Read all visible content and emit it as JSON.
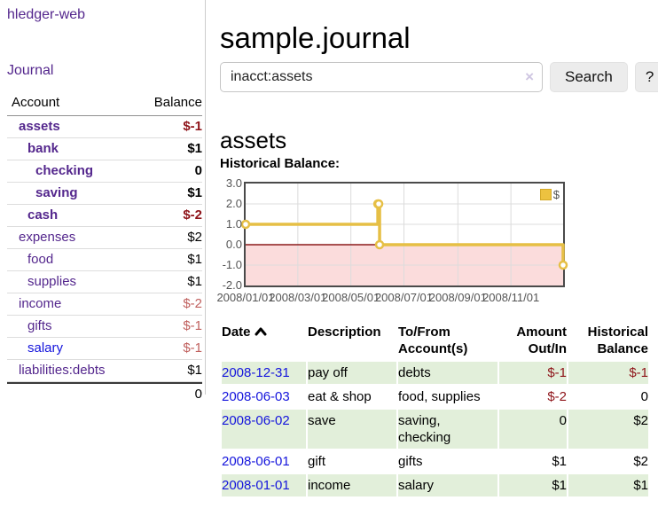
{
  "app": {
    "brand": "hledger-web",
    "nav_journal": "Journal"
  },
  "sidebar": {
    "headers": {
      "account": "Account",
      "balance": "Balance"
    },
    "accounts": [
      {
        "name": "assets",
        "indent": 1,
        "bold": true,
        "balance": "$-1",
        "balance_style": "neg",
        "link_style": "purple"
      },
      {
        "name": "bank",
        "indent": 2,
        "bold": true,
        "balance": "$1",
        "balance_style": "pos",
        "link_style": "purple"
      },
      {
        "name": "checking",
        "indent": 3,
        "bold": true,
        "balance": "0",
        "balance_style": "pos",
        "link_style": "purple"
      },
      {
        "name": "saving",
        "indent": 3,
        "bold": true,
        "balance": "$1",
        "balance_style": "pos",
        "link_style": "purple"
      },
      {
        "name": "cash",
        "indent": 2,
        "bold": true,
        "balance": "$-2",
        "balance_style": "neg",
        "link_style": "purple"
      },
      {
        "name": "expenses",
        "indent": 1,
        "bold": false,
        "balance": "$2",
        "balance_style": "pos",
        "link_style": "purple"
      },
      {
        "name": "food",
        "indent": 2,
        "bold": false,
        "balance": "$1",
        "balance_style": "pos",
        "link_style": "purple"
      },
      {
        "name": "supplies",
        "indent": 2,
        "bold": false,
        "balance": "$1",
        "balance_style": "pos",
        "link_style": "purple"
      },
      {
        "name": "income",
        "indent": 1,
        "bold": false,
        "balance": "$-2",
        "balance_style": "neg-light",
        "link_style": "purple"
      },
      {
        "name": "gifts",
        "indent": 2,
        "bold": false,
        "balance": "$-1",
        "balance_style": "neg-light",
        "link_style": "purple"
      },
      {
        "name": "salary",
        "indent": 2,
        "bold": false,
        "balance": "$-1",
        "balance_style": "neg-light",
        "link_style": "blue"
      },
      {
        "name": "liabilities:debts",
        "indent": 1,
        "bold": false,
        "balance": "$1",
        "balance_style": "pos",
        "link_style": "purple"
      }
    ],
    "total": "0"
  },
  "main": {
    "title": "sample.journal",
    "search": {
      "value": "inacct:assets",
      "clear": "×",
      "button": "Search",
      "help": "?"
    },
    "account_heading": "assets",
    "section_heading": "Historical Balance:"
  },
  "chart_data": {
    "type": "line",
    "step": true,
    "title": "Historical Balance",
    "x_range": [
      "2008-01-01",
      "2008-12-31"
    ],
    "y_range": [
      -2,
      3
    ],
    "y_ticks": [
      {
        "value": 3,
        "label": "3.0"
      },
      {
        "value": 2,
        "label": "2.0"
      },
      {
        "value": 1,
        "label": "1.0"
      },
      {
        "value": 0,
        "label": "0.0"
      },
      {
        "value": -1,
        "label": "-1.0"
      },
      {
        "value": -2,
        "label": "-2.0"
      }
    ],
    "x_ticks": [
      {
        "date": "2008-01-01",
        "label": "2008/01/01"
      },
      {
        "date": "2008-03-01",
        "label": "2008/03/01"
      },
      {
        "date": "2008-05-01",
        "label": "2008/05/01"
      },
      {
        "date": "2008-07-01",
        "label": "2008/07/01"
      },
      {
        "date": "2008-09-01",
        "label": "2008/09/01"
      },
      {
        "date": "2008-11-01",
        "label": "2008/11/01"
      }
    ],
    "series": [
      {
        "name": "$",
        "color": "#e6bf45",
        "points": [
          [
            "2008-01-01",
            1
          ],
          [
            "2008-06-01",
            2
          ],
          [
            "2008-06-02",
            2
          ],
          [
            "2008-06-03",
            0
          ],
          [
            "2008-12-31",
            -1
          ]
        ]
      }
    ],
    "grid": true,
    "grid_color": "#dcdcdc",
    "negative_fill": "#fbdcdc",
    "zero_line_color": "#8b1a1a",
    "legend_position": "top-right",
    "legend_label": "$"
  },
  "register": {
    "headers": [
      "Date",
      "Description",
      "To/From Account(s)",
      "Amount Out/In",
      "Historical Balance"
    ],
    "sort_column": "Date",
    "sort_direction": "ascending",
    "rows": [
      {
        "date": "2008-12-31",
        "description": "pay off",
        "accounts": "debts",
        "amount": "$-1",
        "amount_style": "neg",
        "balance": "$-1",
        "balance_style": "neg",
        "shade": true
      },
      {
        "date": "2008-06-03",
        "description": "eat & shop",
        "accounts": "food, supplies",
        "amount": "$-2",
        "amount_style": "neg",
        "balance": "0",
        "balance_style": "pos",
        "shade": false
      },
      {
        "date": "2008-06-02",
        "description": "save",
        "accounts": "saving, checking",
        "amount": "0",
        "amount_style": "pos",
        "balance": "$2",
        "balance_style": "pos",
        "shade": true
      },
      {
        "date": "2008-06-01",
        "description": "gift",
        "accounts": "gifts",
        "amount": "$1",
        "amount_style": "pos",
        "balance": "$2",
        "balance_style": "pos",
        "shade": false
      },
      {
        "date": "2008-01-01",
        "description": "income",
        "accounts": "salary",
        "amount": "$1",
        "amount_style": "pos",
        "balance": "$1",
        "balance_style": "pos",
        "shade": true
      }
    ]
  },
  "colors": {
    "purple": "#54278d",
    "blue": "#1414dc",
    "negative": "#8e1319",
    "negative_light": "#c0605e",
    "row_green": "#e2efda",
    "gold": "#e6bf45",
    "legend_gold": "#edc240"
  }
}
